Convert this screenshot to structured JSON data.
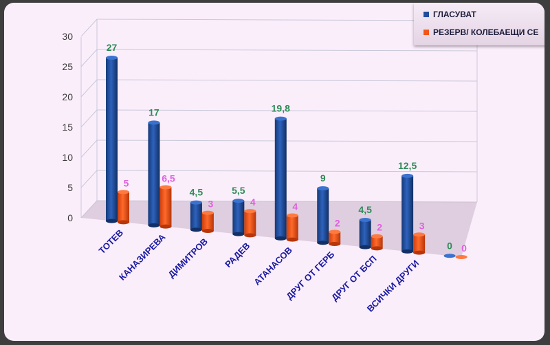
{
  "chart_data": {
    "type": "bar",
    "categories": [
      "ТОТЕВ",
      "КАНАЗИРЕВА",
      "ДИМИТРОВ",
      "РАДЕВ",
      "АТАНАСОВ",
      "ДРУГ ОТ ГЕРБ",
      "ДРУГ ОТ БСП",
      "ВСИЧКИ ДРУГИ",
      ""
    ],
    "series": [
      {
        "name": "ГЛАСУВАТ",
        "color": "#1f4e9c",
        "values": [
          27,
          17,
          4.5,
          5.5,
          19.8,
          9,
          4.5,
          12.5,
          0
        ],
        "labels": [
          "27",
          "17",
          "4,5",
          "5,5",
          "19,8",
          "9",
          "4,5",
          "12,5",
          "0"
        ],
        "label_color": "#2e8b57"
      },
      {
        "name": "РЕЗЕРВ/  КОЛЕБАЕЩИ  СЕ",
        "color": "#f2551a",
        "values": [
          5,
          6.5,
          3,
          4,
          4,
          2,
          2,
          3,
          0
        ],
        "labels": [
          "5",
          "6,5",
          "3",
          "4",
          "4",
          "2",
          "2",
          "3",
          "0"
        ],
        "label_color": "#e060e0"
      }
    ],
    "yticks": [
      "0",
      "5",
      "10",
      "15",
      "20",
      "25",
      "30"
    ],
    "ylim": [
      0,
      30
    ],
    "grid": true,
    "legend_position": "top-right"
  },
  "colors": {
    "background": "#fbeefb",
    "grid": "#c8c8d8",
    "tick_label": "#3a3a3a",
    "category_label": "#1a1aa0"
  }
}
